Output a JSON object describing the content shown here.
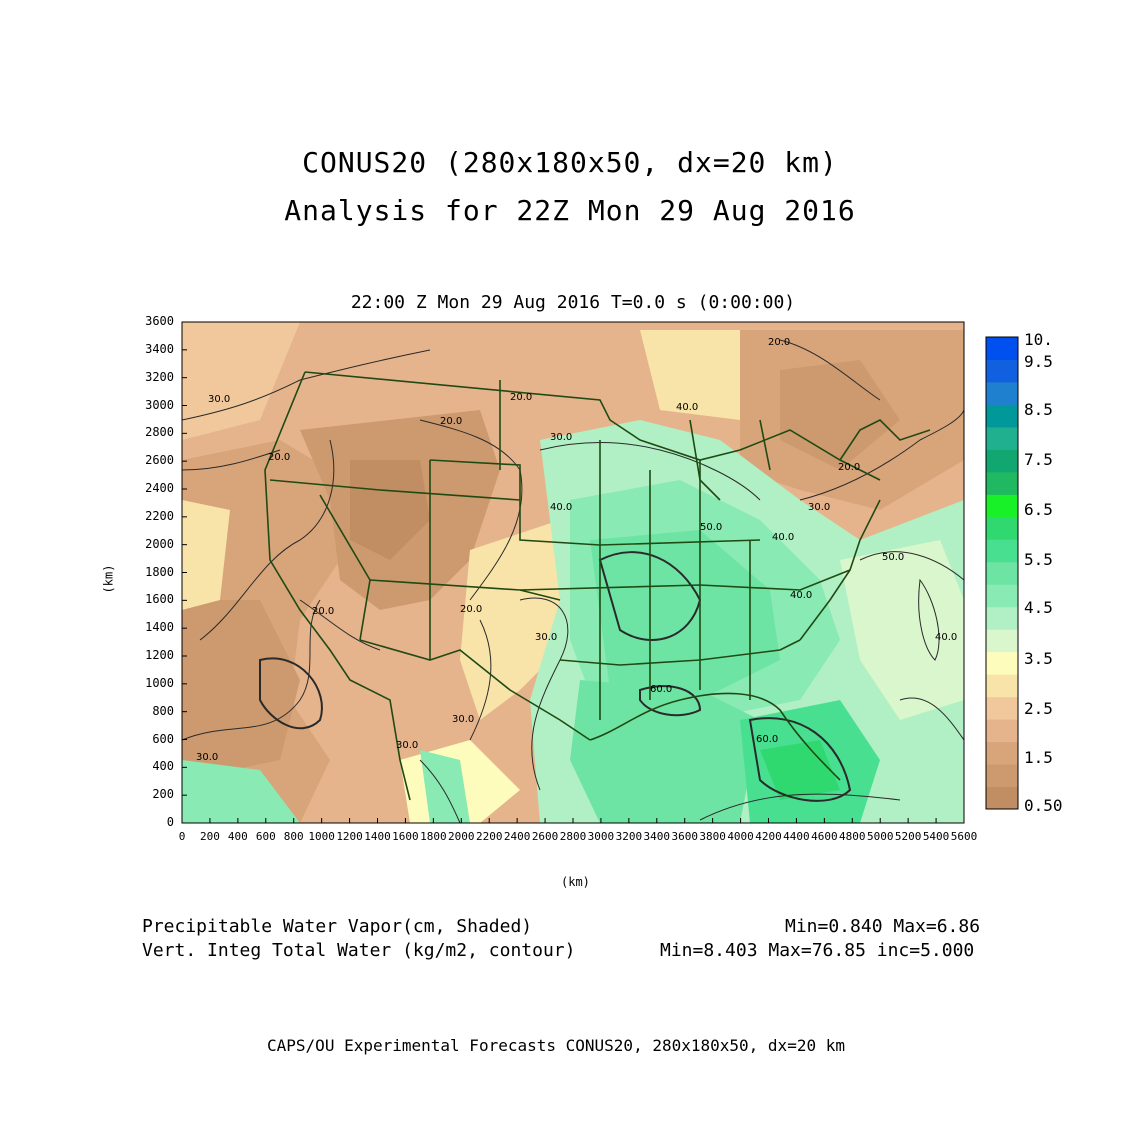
{
  "title": {
    "line1": "CONUS20 (280x180x50, dx=20 km)",
    "line2": "Analysis for 22Z Mon 29 Aug 2016"
  },
  "subtitle": "22:00 Z Mon 29 Aug 2016    T=0.0 s (0:00:00)",
  "axes": {
    "x_label": "(km)",
    "y_label": "(km)",
    "x_range": [
      0,
      5600
    ],
    "y_range": [
      0,
      3600
    ],
    "x_ticks": [
      "0",
      "200",
      "400",
      "600",
      "800",
      "1000",
      "1200",
      "1400",
      "1600",
      "1800",
      "2000",
      "2200",
      "2400",
      "2600",
      "2800",
      "3000",
      "3200",
      "3400",
      "3600",
      "3800",
      "4000",
      "4200",
      "4400",
      "4600",
      "4800",
      "5000",
      "5200",
      "5400",
      "5600"
    ],
    "y_ticks": [
      "0",
      "200",
      "400",
      "600",
      "800",
      "1000",
      "1200",
      "1400",
      "1600",
      "1800",
      "2000",
      "2200",
      "2400",
      "2600",
      "2800",
      "3000",
      "3200",
      "3400",
      "3600"
    ]
  },
  "colorbar": {
    "labels": [
      "10.",
      "9.5",
      "8.5",
      "7.5",
      "6.5",
      "5.5",
      "4.5",
      "3.5",
      "2.5",
      "1.5",
      "0.50"
    ],
    "colors": [
      "#c08e62",
      "#cc9a6e",
      "#d8a47a",
      "#e6b48c",
      "#f0c89c",
      "#f8e4a8",
      "#fefcbc",
      "#daf6cc",
      "#b0f0c4",
      "#8aeab4",
      "#6ee4a4",
      "#48e090",
      "#30d870",
      "#18f028",
      "#20b860",
      "#10a870",
      "#20b090",
      "#009898",
      "#2080d0",
      "#1060e0",
      "#0050f0"
    ]
  },
  "contour_labels": [
    "30.0",
    "20.0",
    "20.0",
    "20.0",
    "20.0",
    "40.0",
    "40.0",
    "40.0",
    "40.0",
    "30.0",
    "30.0",
    "50.0",
    "50.0",
    "60.0",
    "60.0",
    "40.0",
    "20.0",
    "30.0",
    "20.0",
    "30.0",
    "30.0",
    "30.0",
    "20.0"
  ],
  "legend": {
    "shaded_name": "Precipitable Water Vapor(cm, Shaded)",
    "shaded_stats": "Min=0.840 Max=6.86",
    "contour_name": "Vert. Integ Total Water (kg/m2, contour)",
    "contour_stats": "Min=8.403 Max=76.85 inc=5.000"
  },
  "footer": "CAPS/OU Experimental Forecasts  CONUS20, 280x180x50, dx=20 km"
}
